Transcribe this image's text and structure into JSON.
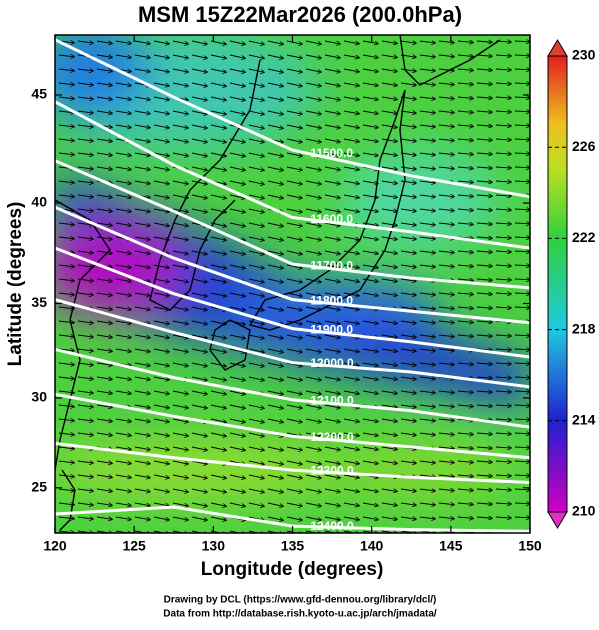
{
  "chart_data": {
    "type": "contour-map",
    "title": "MSM 15Z22Mar2026 (200.0hPa)",
    "xlabel": "Longitude (degrees)",
    "ylabel": "Latitude  (degrees)",
    "projection": "mercator",
    "xlim": [
      120,
      150
    ],
    "ylim": [
      22.4,
      47.6
    ],
    "xticks": [
      120,
      125,
      130,
      135,
      140,
      145,
      150
    ],
    "yticks": [
      25,
      30,
      35,
      40,
      45
    ],
    "contour_lons": [
      120,
      127.5,
      135,
      142.5,
      150
    ],
    "contours": [
      {
        "value": 11500,
        "label": "11500.0",
        "lats": [
          47.4,
          44.9,
          42.5,
          41.3,
          40.3
        ]
      },
      {
        "value": 11600,
        "label": "11600.0",
        "lats": [
          44.7,
          41.8,
          39.3,
          38.6,
          37.8
        ]
      },
      {
        "value": 11700,
        "label": "11700.0",
        "lats": [
          42.0,
          39.6,
          37.0,
          36.3,
          35.8
        ]
      },
      {
        "value": 11800,
        "label": "11800.0",
        "lats": [
          39.8,
          37.3,
          35.2,
          34.6,
          34.0
        ]
      },
      {
        "value": 11900,
        "label": "11900.0",
        "lats": [
          37.8,
          35.5,
          33.7,
          33.0,
          32.2
        ]
      },
      {
        "value": 12000,
        "label": "12000.0",
        "lats": [
          35.2,
          33.5,
          31.9,
          31.4,
          30.6
        ]
      },
      {
        "value": 12100,
        "label": "12100.0",
        "lats": [
          32.6,
          31.1,
          29.9,
          29.3,
          28.4
        ]
      },
      {
        "value": 12200,
        "label": "12200.0",
        "lats": [
          30.2,
          29.0,
          27.9,
          27.3,
          26.7
        ]
      },
      {
        "value": 12300,
        "label": "12300.0",
        "lats": [
          27.5,
          26.7,
          26.0,
          25.6,
          25.3
        ]
      },
      {
        "value": 12400,
        "label": "12400.0",
        "lats": [
          23.5,
          23.9,
          22.8,
          22.6,
          22.5
        ]
      }
    ],
    "colorbar": {
      "lim": [
        210,
        230
      ],
      "ticks": [
        210,
        214,
        218,
        222,
        226,
        230
      ]
    }
  },
  "footer": [
    "Drawing by DCL (https://www.gfd-dennou.org/library/dcl/)",
    "Data from http://database.rish.kyoto-u.ac.jp/arch/jmadata/"
  ]
}
